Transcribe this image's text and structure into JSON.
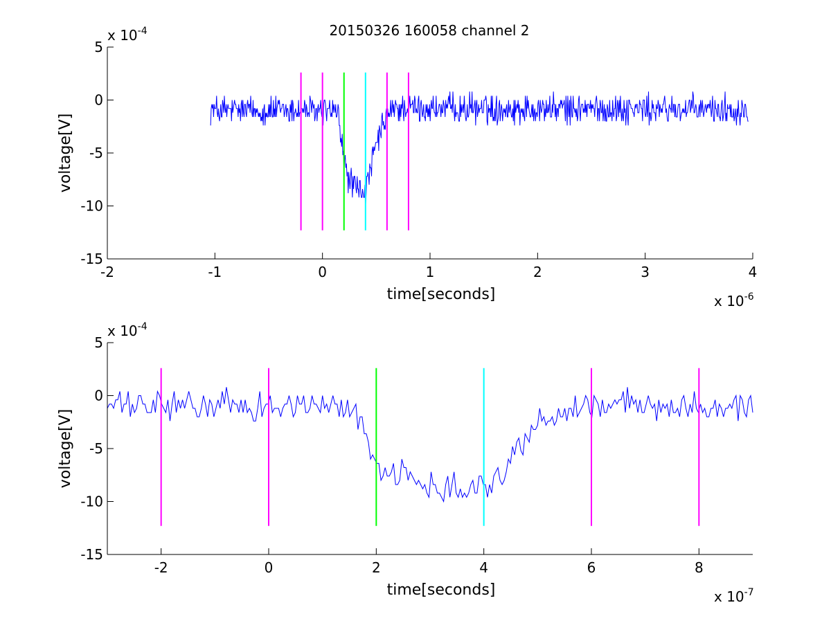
{
  "figure": {
    "title": "20150326 160058 channel 2"
  },
  "chart_data": [
    {
      "type": "line",
      "title": "20150326 160058 channel 2",
      "xlabel": "time[seconds]",
      "ylabel": "voltage[V]",
      "x_exponent": "x 10",
      "x_exponent_power": "-6",
      "y_exponent": "x 10",
      "y_exponent_power": "-4",
      "xlim": [
        -2,
        4
      ],
      "ylim": [
        -15,
        5
      ],
      "xticks": [
        -2,
        -1,
        0,
        1,
        2,
        3,
        4
      ],
      "xtick_labels": [
        "-2",
        "-1",
        "0",
        "1",
        "2",
        "3",
        "4"
      ],
      "yticks": [
        -15,
        -10,
        -5,
        0,
        5
      ],
      "ytick_labels": [
        "-15",
        "-10",
        "-5",
        "0",
        "5"
      ],
      "grid": false,
      "series": [
        {
          "color": "#0000ff",
          "x_range": [
            -1.04,
            3.96
          ],
          "noise_amplitude": 1.1,
          "sample_count": 900,
          "x": [
            -1.04,
            0.08,
            0.15,
            0.2,
            0.25,
            0.34,
            0.4,
            0.46,
            0.52,
            0.6,
            0.7,
            3.96
          ],
          "y": [
            -1.0,
            -1.0,
            -1.5,
            -6.0,
            -7.5,
            -8.5,
            -8.8,
            -6.0,
            -3.5,
            -1.5,
            -0.8,
            -0.9
          ]
        }
      ],
      "markers": [
        {
          "x": -0.2,
          "color": "#ff00ff",
          "y_range": [
            -12.3,
            2.6
          ]
        },
        {
          "x": 0.0,
          "color": "#ff00ff",
          "y_range": [
            -12.3,
            2.6
          ]
        },
        {
          "x": 0.2,
          "color": "#00ff00",
          "y_range": [
            -12.3,
            2.6
          ]
        },
        {
          "x": 0.4,
          "color": "#00ffff",
          "y_range": [
            -12.3,
            2.6
          ]
        },
        {
          "x": 0.6,
          "color": "#ff00ff",
          "y_range": [
            -12.3,
            2.6
          ]
        },
        {
          "x": 0.8,
          "color": "#ff00ff",
          "y_range": [
            -12.3,
            2.6
          ]
        }
      ]
    },
    {
      "type": "line",
      "title": "",
      "xlabel": "time[seconds]",
      "ylabel": "voltage[V]",
      "x_exponent": "x 10",
      "x_exponent_power": "-7",
      "y_exponent": "x 10",
      "y_exponent_power": "-4",
      "xlim": [
        -3,
        9
      ],
      "ylim": [
        -15,
        5
      ],
      "xticks": [
        -2,
        0,
        2,
        4,
        6,
        8
      ],
      "xtick_labels": [
        "-2",
        "0",
        "2",
        "4",
        "6",
        "8"
      ],
      "yticks": [
        -15,
        -10,
        -5,
        0,
        5
      ],
      "ytick_labels": [
        "-15",
        "-10",
        "-5",
        "0",
        "5"
      ],
      "grid": false,
      "series": [
        {
          "color": "#0000ff",
          "x_range": [
            -3,
            9
          ],
          "noise_amplitude": 1.1,
          "sample_count": 310,
          "x": [
            -3,
            1.5,
            1.7,
            2.0,
            2.4,
            3.0,
            3.6,
            4.0,
            4.4,
            4.6,
            5.0,
            5.6,
            6.0,
            9.0
          ],
          "y": [
            -1.0,
            -1.0,
            -2.5,
            -6.5,
            -7.5,
            -8.5,
            -8.5,
            -8.5,
            -7.5,
            -5.0,
            -2.5,
            -1.2,
            -0.9,
            -0.9
          ]
        }
      ],
      "markers": [
        {
          "x": -2,
          "color": "#ff00ff",
          "y_range": [
            -12.3,
            2.6
          ]
        },
        {
          "x": 0,
          "color": "#ff00ff",
          "y_range": [
            -12.3,
            2.6
          ]
        },
        {
          "x": 2,
          "color": "#00ff00",
          "y_range": [
            -12.3,
            2.6
          ]
        },
        {
          "x": 4,
          "color": "#00ffff",
          "y_range": [
            -12.3,
            2.6
          ]
        },
        {
          "x": 6,
          "color": "#ff00ff",
          "y_range": [
            -12.3,
            2.6
          ]
        },
        {
          "x": 8,
          "color": "#ff00ff",
          "y_range": [
            -12.3,
            2.6
          ]
        }
      ]
    }
  ]
}
